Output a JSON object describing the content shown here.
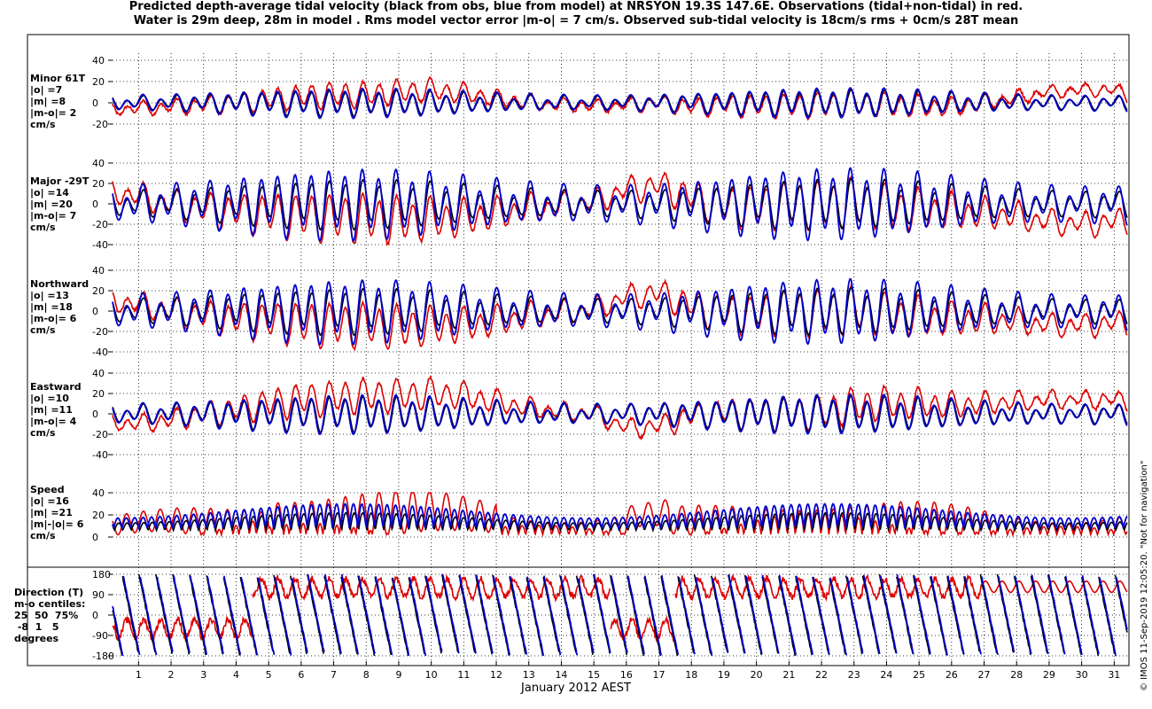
{
  "title_line1": "Predicted depth-average tidal velocity (black from obs, blue from model) at NRSYON 19.3S 147.6E. Observations (tidal+non-tidal) in red.",
  "title_line2": "Water is 29m deep, 28m in model . Rms model vector error |m-o| = 7 cm/s. Observed sub-tidal velocity is 18cm/s rms + 0cm/s 28T mean",
  "stamp": "© IMOS 11-Sep-2019 12:05:20. \"Not for navigation\"",
  "chart_data": {
    "type": "line",
    "xlabel": "January 2012 AEST",
    "xlim": [
      0.2,
      31.4
    ],
    "xticks": [
      1,
      2,
      3,
      4,
      5,
      6,
      7,
      8,
      9,
      10,
      11,
      12,
      13,
      14,
      15,
      16,
      17,
      18,
      19,
      20,
      21,
      22,
      23,
      24,
      25,
      26,
      27,
      28,
      29,
      30,
      31
    ],
    "series_legend": {
      "obs_tidal": "black from obs",
      "model": "blue from model",
      "observations": "Observations (tidal+non-tidal) in red"
    },
    "colors": {
      "obs_tidal": "#000000",
      "model": "#0000cc",
      "observations": "#dd0000"
    },
    "panels": [
      {
        "key": "minor",
        "label_lines": [
          "Minor 61T",
          "|o| =7",
          "|m| =8",
          "|m-o|= 2",
          "cm/s"
        ],
        "ylim": [
          -20,
          40
        ],
        "yticks": [
          -20,
          0,
          20,
          40
        ],
        "tidal_amp_cm_s": 7,
        "model_amp_cm_s": 8,
        "subtidal": [
          [
            0.2,
            -6
          ],
          [
            2,
            -4
          ],
          [
            4,
            0
          ],
          [
            5,
            3
          ],
          [
            6,
            6
          ],
          [
            8,
            8
          ],
          [
            9,
            10
          ],
          [
            10,
            12
          ],
          [
            11,
            9
          ],
          [
            12,
            4
          ],
          [
            13,
            0
          ],
          [
            14,
            -2
          ],
          [
            15,
            -3
          ],
          [
            16,
            -2
          ],
          [
            17,
            0
          ],
          [
            18,
            -4
          ],
          [
            19,
            -2
          ],
          [
            20,
            -3
          ],
          [
            21,
            -3
          ],
          [
            22,
            -2
          ],
          [
            23,
            0
          ],
          [
            24,
            -2
          ],
          [
            25,
            -3
          ],
          [
            26,
            -4
          ],
          [
            27,
            0
          ],
          [
            28,
            5
          ],
          [
            29,
            10
          ],
          [
            30,
            12
          ],
          [
            31,
            12
          ],
          [
            31.4,
            8
          ]
        ]
      },
      {
        "key": "major",
        "label_lines": [
          "Major -29T",
          "|o| =14",
          "|m| =20",
          "|m-o|= 7",
          "cm/s"
        ],
        "ylim": [
          -40,
          40
        ],
        "yticks": [
          -40,
          -20,
          0,
          20,
          40
        ],
        "tidal_amp_cm_s": 14,
        "model_amp_cm_s": 20,
        "subtidal": [
          [
            0.2,
            12
          ],
          [
            1,
            8
          ],
          [
            2,
            0
          ],
          [
            3,
            -5
          ],
          [
            4,
            -8
          ],
          [
            5,
            -10
          ],
          [
            6,
            -12
          ],
          [
            7,
            -14
          ],
          [
            8,
            -14
          ],
          [
            9,
            -16
          ],
          [
            10,
            -15
          ],
          [
            11,
            -14
          ],
          [
            12,
            -10
          ],
          [
            13,
            -5
          ],
          [
            14,
            -2
          ],
          [
            15,
            2
          ],
          [
            16,
            14
          ],
          [
            17,
            18
          ],
          [
            18,
            6
          ],
          [
            19,
            -2
          ],
          [
            20,
            -4
          ],
          [
            21,
            0
          ],
          [
            22,
            -2
          ],
          [
            23,
            2
          ],
          [
            24,
            -4
          ],
          [
            25,
            -6
          ],
          [
            26,
            -8
          ],
          [
            27,
            -10
          ],
          [
            28,
            -12
          ],
          [
            29,
            -18
          ],
          [
            30,
            -20
          ],
          [
            31,
            -18
          ],
          [
            31.4,
            -16
          ]
        ]
      },
      {
        "key": "northward",
        "label_lines": [
          "Northward",
          "|o| =13",
          "|m| =18",
          "|m-o|= 6",
          "cm/s"
        ],
        "ylim": [
          -40,
          40
        ],
        "yticks": [
          -40,
          -20,
          0,
          20,
          40
        ],
        "tidal_amp_cm_s": 13,
        "model_amp_cm_s": 18,
        "subtidal": [
          [
            0.2,
            10
          ],
          [
            1,
            7
          ],
          [
            2,
            0
          ],
          [
            3,
            -5
          ],
          [
            4,
            -8
          ],
          [
            5,
            -10
          ],
          [
            6,
            -12
          ],
          [
            7,
            -14
          ],
          [
            8,
            -14
          ],
          [
            9,
            -16
          ],
          [
            10,
            -15
          ],
          [
            11,
            -14
          ],
          [
            12,
            -10
          ],
          [
            13,
            -5
          ],
          [
            14,
            -2
          ],
          [
            15,
            2
          ],
          [
            16,
            14
          ],
          [
            17,
            18
          ],
          [
            18,
            5
          ],
          [
            19,
            -2
          ],
          [
            20,
            -4
          ],
          [
            21,
            0
          ],
          [
            22,
            -2
          ],
          [
            23,
            2
          ],
          [
            24,
            -4
          ],
          [
            25,
            -6
          ],
          [
            26,
            -8
          ],
          [
            27,
            -8
          ],
          [
            28,
            -10
          ],
          [
            29,
            -14
          ],
          [
            30,
            -14
          ],
          [
            31,
            -12
          ],
          [
            31.4,
            -12
          ]
        ]
      },
      {
        "key": "eastward",
        "label_lines": [
          "Eastward",
          "|o| =10",
          "|m| =11",
          "|m-o|= 4",
          "cm/s"
        ],
        "ylim": [
          -40,
          40
        ],
        "yticks": [
          -40,
          -20,
          0,
          20,
          40
        ],
        "tidal_amp_cm_s": 10,
        "model_amp_cm_s": 11,
        "subtidal": [
          [
            0.2,
            -8
          ],
          [
            1,
            -10
          ],
          [
            2,
            -6
          ],
          [
            3,
            0
          ],
          [
            4,
            4
          ],
          [
            5,
            10
          ],
          [
            6,
            14
          ],
          [
            7,
            16
          ],
          [
            8,
            18
          ],
          [
            9,
            18
          ],
          [
            10,
            20
          ],
          [
            11,
            18
          ],
          [
            12,
            12
          ],
          [
            13,
            6
          ],
          [
            14,
            2
          ],
          [
            15,
            0
          ],
          [
            16,
            -14
          ],
          [
            17,
            -12
          ],
          [
            18,
            -2
          ],
          [
            19,
            2
          ],
          [
            20,
            0
          ],
          [
            21,
            0
          ],
          [
            22,
            2
          ],
          [
            23,
            8
          ],
          [
            24,
            10
          ],
          [
            25,
            10
          ],
          [
            26,
            8
          ],
          [
            27,
            10
          ],
          [
            28,
            12
          ],
          [
            29,
            14
          ],
          [
            30,
            14
          ],
          [
            31,
            14
          ],
          [
            31.4,
            12
          ]
        ]
      },
      {
        "key": "speed",
        "label_lines": [
          "Speed",
          "|o| =16",
          "|m| =21",
          "|m|-|o|= 6",
          "cm/s"
        ],
        "ylim": [
          0,
          40
        ],
        "yticks": [
          0,
          20,
          40
        ],
        "tidal_amp_cm_s": 16,
        "model_amp_cm_s": 21
      },
      {
        "key": "direction",
        "label_lines": [
          "Direction (T)",
          "m-o centiles:",
          "25  50  75%",
          " -8  1   5",
          "degrees"
        ],
        "ylim": [
          -180,
          180
        ],
        "yticks": [
          -180,
          -90,
          0,
          90,
          180
        ]
      }
    ]
  }
}
